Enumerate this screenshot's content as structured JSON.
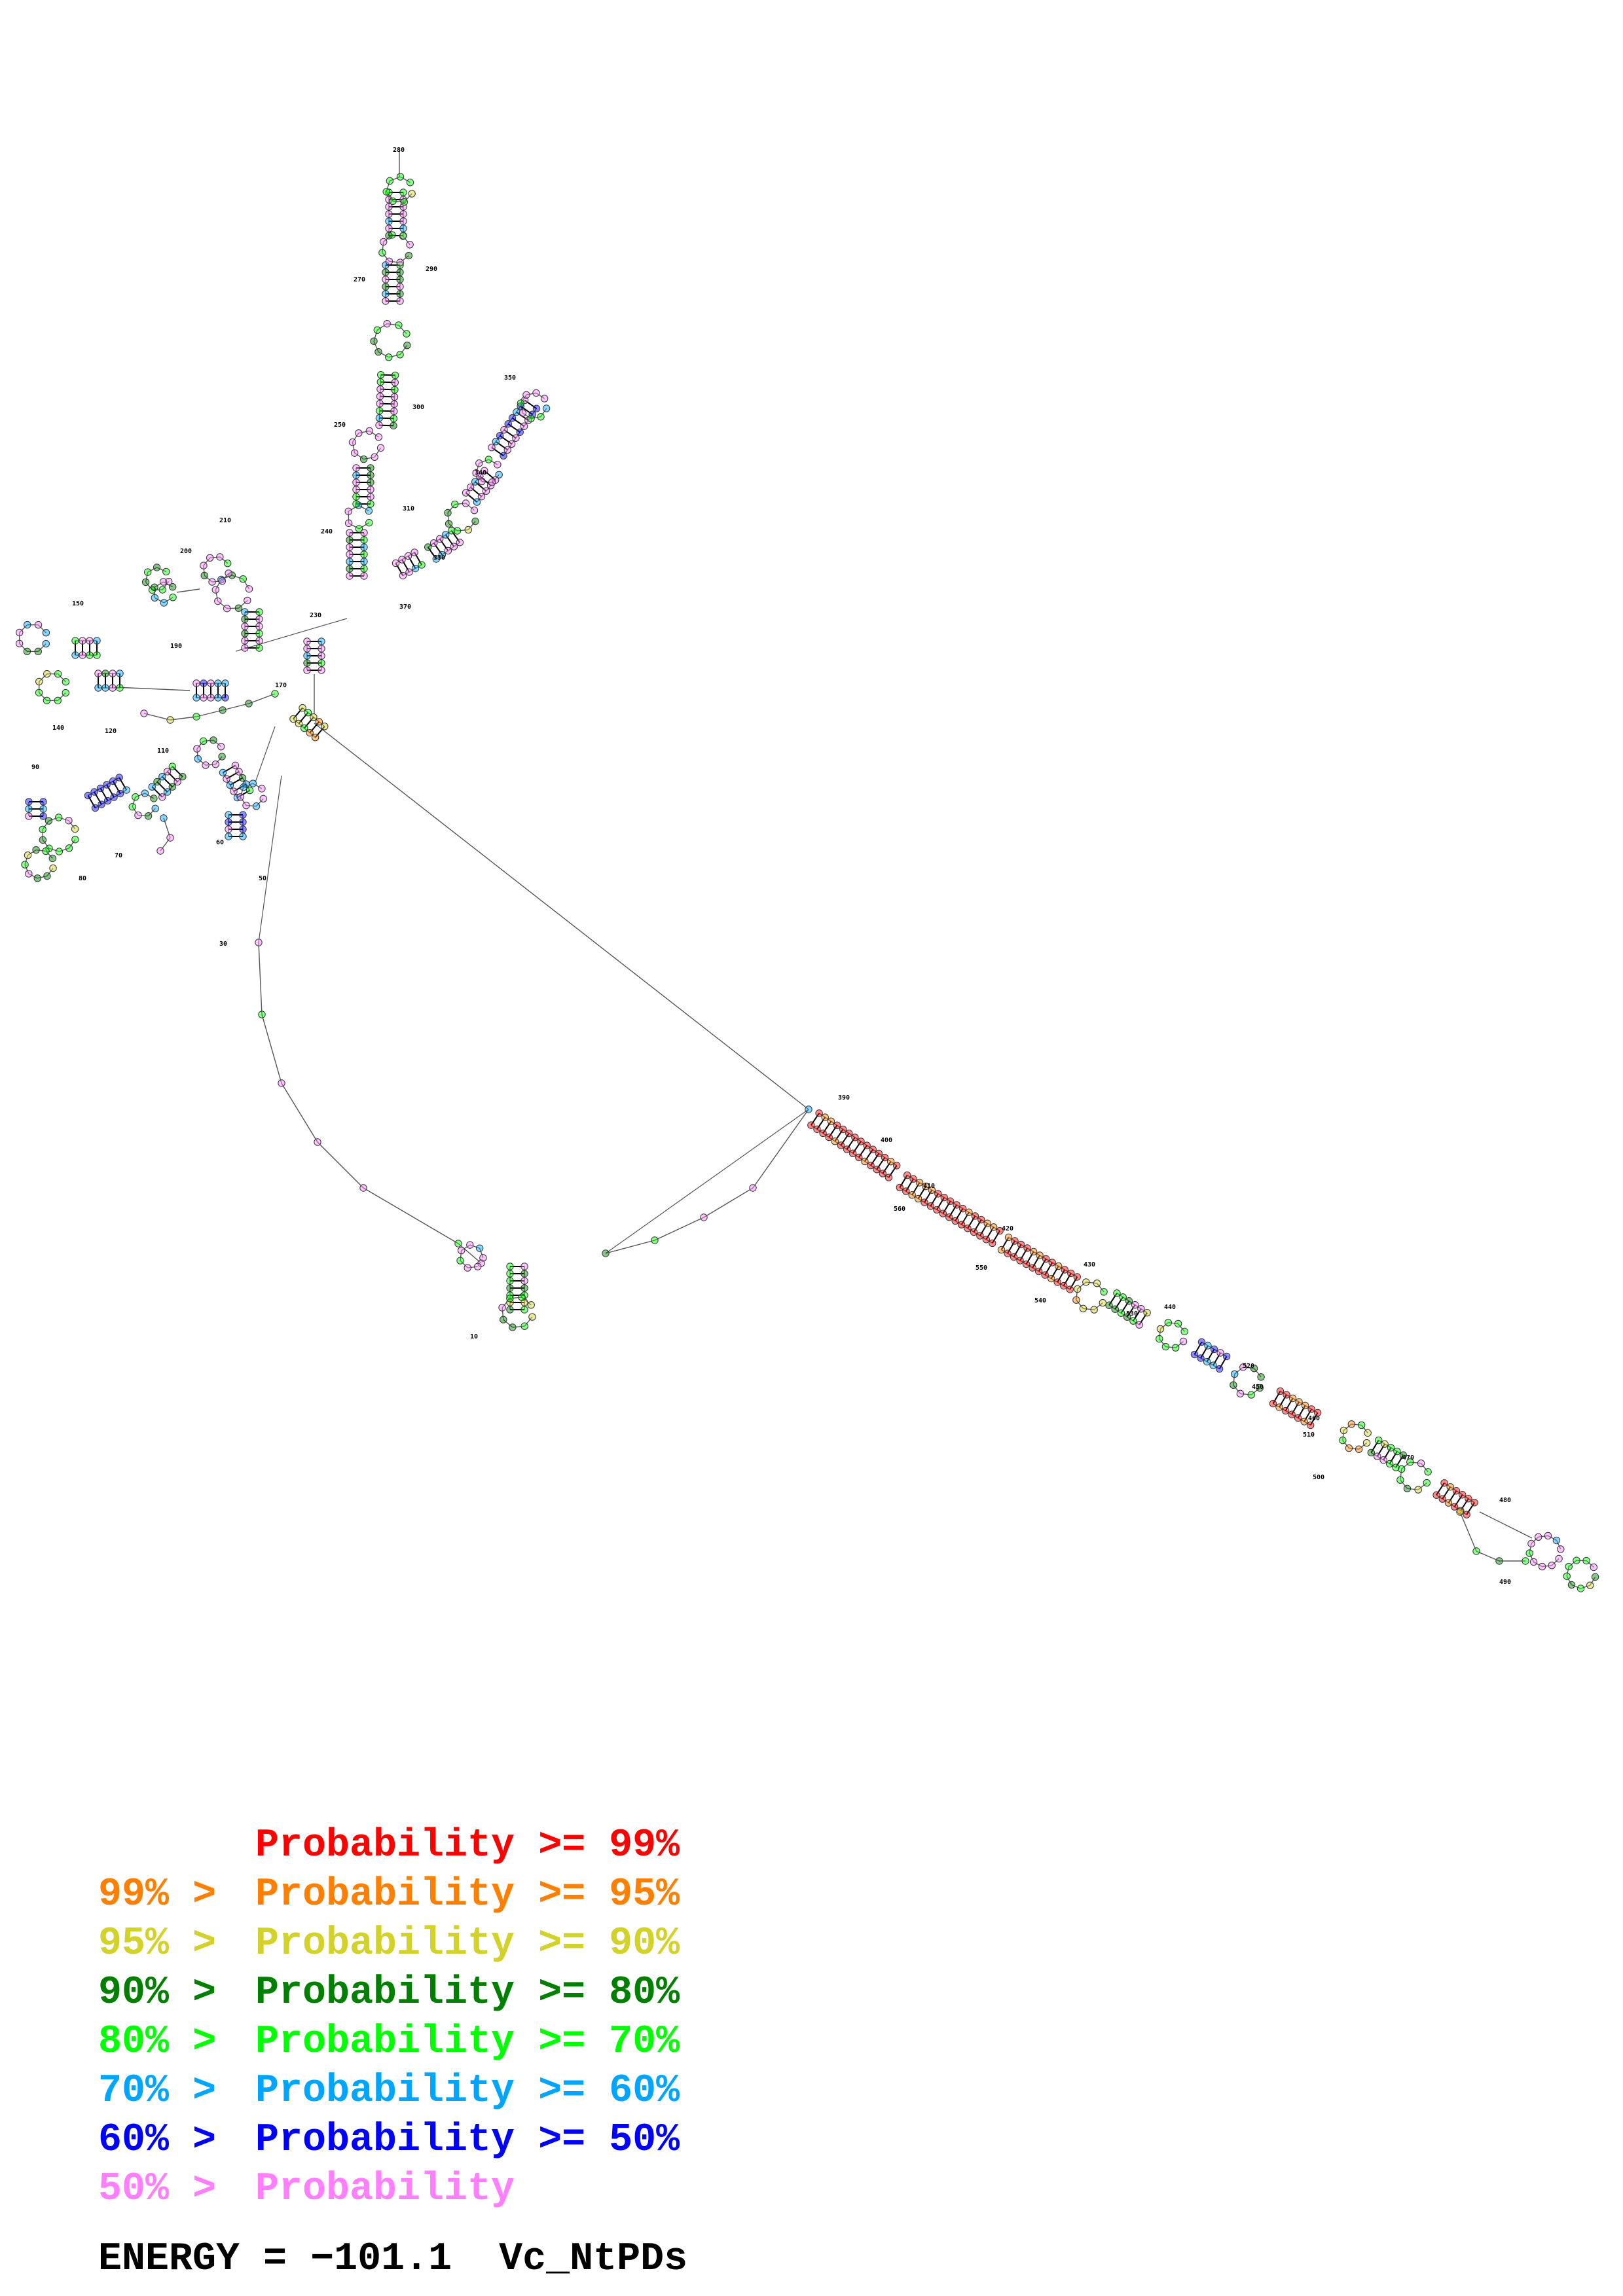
{
  "diagram": {
    "numbering": [
      "10",
      "30",
      "50",
      "60",
      "70",
      "80",
      "90",
      "110",
      "120",
      "140",
      "150",
      "170",
      "190",
      "200",
      "210",
      "230",
      "240",
      "250",
      "270",
      "280",
      "290",
      "300",
      "310",
      "330",
      "340",
      "350",
      "370",
      "390",
      "400",
      "410",
      "420",
      "430",
      "440",
      "450",
      "460",
      "470",
      "480",
      "490",
      "500",
      "510",
      "520",
      "530",
      "540",
      "550",
      "560"
    ],
    "colors": {
      "p99": "#ff0000",
      "p95": "#ff7f00",
      "p90": "#d2d22a",
      "p80": "#007f00",
      "p70": "#00ff00",
      "p60": "#00a5ff",
      "p50": "#0000ff",
      "lt50": "#ff7fff"
    }
  },
  "legend": {
    "rows": [
      {
        "prefix": "",
        "label": "Probability",
        "op": ">=",
        "value": "99%",
        "color": "#ff0000"
      },
      {
        "prefix": "99% >",
        "label": "Probability",
        "op": ">=",
        "value": "95%",
        "color": "#ff7f00"
      },
      {
        "prefix": "95% >",
        "label": "Probability",
        "op": ">=",
        "value": "90%",
        "color": "#d2d22a"
      },
      {
        "prefix": "90% >",
        "label": "Probability",
        "op": ">=",
        "value": "80%",
        "color": "#007f00"
      },
      {
        "prefix": "80% >",
        "label": "Probability",
        "op": ">=",
        "value": "70%",
        "color": "#00ff00"
      },
      {
        "prefix": "70% >",
        "label": "Probability",
        "op": ">=",
        "value": "60%",
        "color": "#00a5ff"
      },
      {
        "prefix": "60% >",
        "label": "Probability",
        "op": ">=",
        "value": "50%",
        "color": "#0000ff"
      },
      {
        "prefix": "50% >",
        "label": "Probability",
        "op": "",
        "value": "",
        "color": "#ff7fff"
      }
    ]
  },
  "energy": {
    "label": "ENERGY = ",
    "value": "−101.1",
    "name": "Vc_NtPDs"
  }
}
